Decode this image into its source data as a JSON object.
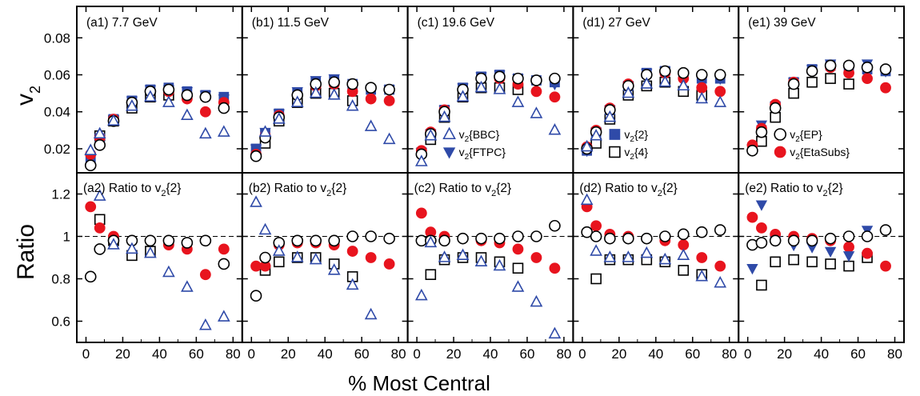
{
  "figure": {
    "xlabel": "% Most Central",
    "ylabel_top": "v",
    "ylabel_top_sub": "2",
    "ylabel_bottom": "Ratio"
  },
  "chart_data": {
    "type": "scatter",
    "xlim": [
      -5,
      85
    ],
    "x_ticks": [
      0,
      20,
      40,
      60,
      80
    ],
    "top_ylim": [
      0.007,
      0.097
    ],
    "top_y_ticks": [
      "0.02",
      "0.04",
      "0.06",
      "0.08"
    ],
    "bottom_ylim": [
      0.5,
      1.3
    ],
    "bottom_y_ticks": [
      "0.6",
      "0.8",
      "1",
      "1.2"
    ],
    "reference_line": 1,
    "centrality": [
      2.5,
      7.5,
      15,
      25,
      35,
      45,
      55,
      65,
      75
    ],
    "series": [
      {
        "key": "v2_2",
        "name_main": "v",
        "name_sub": "2",
        "name_suffix": "{2}",
        "marker": "square",
        "filled": true,
        "color": "#2f4aa8"
      },
      {
        "key": "v2_4",
        "name_main": "v",
        "name_sub": "2",
        "name_suffix": "{4}",
        "marker": "square",
        "filled": false,
        "color": "#000000"
      },
      {
        "key": "v2_ep",
        "name_main": "v",
        "name_sub": "2",
        "name_suffix": "{EP}",
        "marker": "circle",
        "filled": false,
        "color": "#000000"
      },
      {
        "key": "v2_eta",
        "name_main": "v",
        "name_sub": "2",
        "name_suffix": "{EtaSubs}",
        "marker": "circle",
        "filled": true,
        "color": "#e8141e"
      },
      {
        "key": "v2_bbc",
        "name_main": "v",
        "name_sub": "2",
        "name_suffix": "{BBC}",
        "marker": "triangle-up",
        "filled": false,
        "color": "#2f4aa8"
      },
      {
        "key": "v2_ftpc",
        "name_main": "v",
        "name_sub": "2",
        "name_suffix": "{FTPC}",
        "marker": "triangle-down",
        "filled": true,
        "color": "#2f4aa8"
      }
    ],
    "panels": [
      {
        "top_label": "(a1) 7.7 GeV",
        "bottom_label_pre": "(a2) Ratio to v",
        "bottom_label_sub": "2",
        "bottom_label_post": "{2}",
        "v2": {
          "v2_2": [
            0.015,
            0.025,
            0.036,
            0.046,
            0.052,
            0.053,
            0.051,
            0.049,
            0.048
          ],
          "v2_4": [
            null,
            0.027,
            0.035,
            0.042,
            0.048,
            0.049,
            null,
            null,
            null
          ],
          "v2_ep": [
            0.011,
            0.022,
            0.035,
            0.045,
            0.051,
            0.052,
            0.049,
            0.048,
            0.042
          ],
          "v2_eta": [
            0.017,
            0.026,
            0.036,
            0.045,
            0.051,
            0.051,
            0.047,
            0.04,
            0.045
          ],
          "v2_bbc": [
            0.019,
            0.028,
            0.035,
            0.043,
            0.048,
            0.045,
            0.038,
            0.028,
            0.029
          ],
          "v2_ftpc": [
            0.015,
            0.026,
            0.036,
            0.046,
            0.052,
            0.052,
            0.051,
            0.049,
            0.047
          ]
        },
        "ratio": {
          "v2_4": [
            null,
            1.08,
            0.98,
            0.91,
            0.93,
            null,
            null,
            null,
            null
          ],
          "v2_ep": [
            0.81,
            0.94,
            0.98,
            0.98,
            0.98,
            0.98,
            0.97,
            0.98,
            0.87
          ],
          "v2_eta": [
            1.14,
            1.04,
            1.0,
            0.98,
            0.98,
            0.96,
            0.94,
            0.82,
            0.94
          ],
          "v2_bbc": [
            null,
            1.19,
            0.96,
            0.94,
            0.92,
            0.83,
            0.76,
            0.58,
            0.62
          ]
        }
      },
      {
        "top_label": "(b1) 11.5 GeV",
        "bottom_label_pre": "(b2) Ratio to v",
        "bottom_label_sub": "2",
        "bottom_label_post": "{2}",
        "v2": {
          "v2_2": [
            0.02,
            0.028,
            0.039,
            0.05,
            0.056,
            0.057,
            0.055,
            0.052,
            0.052
          ],
          "v2_4": [
            null,
            0.023,
            0.035,
            0.045,
            0.05,
            0.05,
            0.046,
            null,
            null
          ],
          "v2_ep": [
            0.016,
            0.026,
            0.037,
            0.049,
            0.055,
            0.056,
            0.055,
            0.053,
            0.052
          ],
          "v2_eta": [
            0.017,
            0.027,
            0.038,
            0.049,
            0.054,
            0.055,
            0.051,
            0.047,
            0.046
          ],
          "v2_bbc": [
            null,
            0.029,
            0.036,
            0.045,
            0.05,
            0.049,
            0.043,
            0.032,
            0.025
          ],
          "v2_ftpc": [
            0.02,
            0.029,
            0.039,
            0.051,
            0.057,
            0.058,
            0.054,
            0.052,
            0.052
          ]
        },
        "ratio": {
          "v2_4": [
            null,
            0.84,
            0.88,
            0.9,
            0.9,
            0.87,
            0.81,
            null,
            null
          ],
          "v2_ep": [
            0.72,
            0.9,
            0.97,
            0.98,
            0.98,
            0.98,
            1.0,
            1.0,
            0.99
          ],
          "v2_eta": [
            0.86,
            0.86,
            0.96,
            0.97,
            0.97,
            0.96,
            0.93,
            0.9,
            0.87
          ],
          "v2_bbc": [
            1.16,
            1.03,
            0.93,
            0.9,
            0.89,
            0.84,
            0.77,
            0.63,
            null
          ]
        }
      },
      {
        "top_label": "(c1) 19.6 GeV",
        "bottom_label_pre": "(c2) Ratio to v",
        "bottom_label_sub": "2",
        "bottom_label_post": "{2}",
        "v2": {
          "v2_2": [
            0.018,
            0.028,
            0.041,
            0.053,
            0.059,
            0.06,
            0.058,
            0.057,
            0.056
          ],
          "v2_4": [
            null,
            0.025,
            0.037,
            0.048,
            0.053,
            0.053,
            0.052,
            null,
            null
          ],
          "v2_ep": [
            0.017,
            0.028,
            0.04,
            0.052,
            0.058,
            0.059,
            0.058,
            0.057,
            0.058
          ],
          "v2_eta": [
            0.019,
            0.029,
            0.041,
            0.052,
            0.058,
            0.058,
            0.055,
            0.051,
            0.048
          ],
          "v2_bbc": [
            0.013,
            0.027,
            0.037,
            0.048,
            0.053,
            0.052,
            0.045,
            0.039,
            0.03
          ],
          "v2_ftpc": [
            0.018,
            0.028,
            0.041,
            0.053,
            0.059,
            0.06,
            0.058,
            0.056,
            0.055
          ]
        },
        "ratio": {
          "v2_4": [
            null,
            0.82,
            0.89,
            0.9,
            0.9,
            0.88,
            0.85,
            null,
            null
          ],
          "v2_ep": [
            0.98,
            0.98,
            0.98,
            0.99,
            0.99,
            0.99,
            1.0,
            1.0,
            1.05
          ],
          "v2_eta": [
            1.11,
            1.02,
            1.0,
            0.99,
            0.98,
            0.97,
            0.94,
            0.9,
            0.85
          ],
          "v2_bbc": [
            0.72,
            0.97,
            0.9,
            0.91,
            0.88,
            0.86,
            0.76,
            0.69,
            0.54
          ]
        }
      },
      {
        "top_label": "(d1) 27 GeV",
        "bottom_label_pre": "(d2) Ratio to v",
        "bottom_label_sub": "2",
        "bottom_label_post": "{2}",
        "v2": {
          "v2_2": [
            0.019,
            0.029,
            0.041,
            0.054,
            0.061,
            0.062,
            0.06,
            0.058,
            0.058
          ],
          "v2_4": [
            null,
            0.023,
            0.036,
            0.049,
            0.054,
            0.056,
            0.051,
            0.049,
            null
          ],
          "v2_ep": [
            0.02,
            0.029,
            0.041,
            0.054,
            0.06,
            0.062,
            0.061,
            0.06,
            0.06
          ],
          "v2_eta": [
            0.021,
            0.03,
            0.042,
            0.055,
            0.06,
            0.061,
            0.058,
            0.053,
            0.051
          ],
          "v2_bbc": [
            0.021,
            0.027,
            0.037,
            0.05,
            0.055,
            0.056,
            0.054,
            0.047,
            0.045
          ],
          "v2_ftpc": [
            0.019,
            0.029,
            0.041,
            0.054,
            0.061,
            0.062,
            0.06,
            0.058,
            0.058
          ]
        },
        "ratio": {
          "v2_4": [
            null,
            0.8,
            0.89,
            0.89,
            0.89,
            0.88,
            0.84,
            0.82,
            null
          ],
          "v2_ep": [
            1.02,
            1.0,
            0.99,
            0.99,
            0.99,
            1.0,
            1.01,
            1.02,
            1.03
          ],
          "v2_eta": [
            1.14,
            1.05,
            1.01,
            1.0,
            0.99,
            0.98,
            0.96,
            0.9,
            0.86
          ],
          "v2_bbc": [
            1.17,
            0.93,
            0.9,
            0.9,
            0.92,
            0.89,
            0.91,
            0.81,
            0.78
          ]
        }
      },
      {
        "top_label": "(e1) 39 GeV",
        "bottom_label_pre": "(e2) Ratio to v",
        "bottom_label_sub": "2",
        "bottom_label_post": "{2}",
        "v2": {
          "v2_2": [
            0.02,
            0.03,
            0.043,
            0.056,
            0.063,
            0.065,
            0.064,
            0.063,
            0.062
          ],
          "v2_4": [
            null,
            0.024,
            0.037,
            0.05,
            0.056,
            0.058,
            0.055,
            null,
            null
          ],
          "v2_ep": [
            0.019,
            0.029,
            0.042,
            0.055,
            0.062,
            0.065,
            0.065,
            0.064,
            0.063
          ],
          "v2_eta": [
            0.022,
            0.031,
            0.044,
            0.056,
            0.062,
            0.064,
            0.061,
            0.058,
            0.053
          ],
          "v2_ftpc": [
            0.02,
            0.033,
            0.043,
            0.056,
            0.063,
            0.066,
            0.063,
            0.066,
            0.062
          ]
        },
        "ratio": {
          "v2_4": [
            null,
            0.77,
            0.88,
            0.89,
            0.88,
            0.87,
            0.86,
            0.9,
            null
          ],
          "v2_ep": [
            0.96,
            0.97,
            0.98,
            0.98,
            0.98,
            0.99,
            1.0,
            1.0,
            1.03
          ],
          "v2_eta": [
            1.09,
            1.04,
            1.01,
            1.0,
            0.99,
            0.98,
            0.95,
            0.92,
            0.86
          ],
          "v2_ftpc": [
            0.85,
            1.15,
            0.98,
            0.96,
            0.95,
            0.93,
            0.91,
            1.03,
            null
          ]
        }
      }
    ],
    "legends": [
      {
        "panel": 2,
        "items": [
          "v2_bbc",
          "v2_ftpc"
        ]
      },
      {
        "panel": 3,
        "items": [
          "v2_2",
          "v2_4"
        ]
      },
      {
        "panel": 4,
        "items": [
          "v2_ep",
          "v2_eta"
        ]
      }
    ]
  }
}
